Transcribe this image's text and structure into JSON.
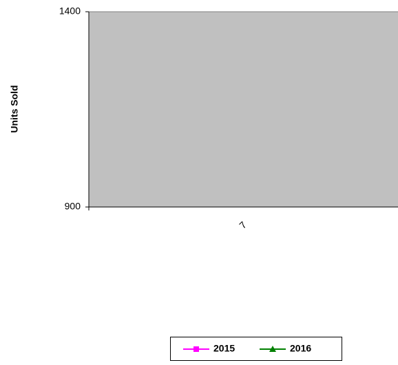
{
  "chart_data": {
    "type": "line",
    "ylabel": "Units Sold",
    "categories": [
      "7"
    ],
    "series": [
      {
        "name": "2015",
        "color": "#ff00ff",
        "marker": "square",
        "values": [
          null
        ]
      },
      {
        "name": "2016",
        "color": "#008000",
        "marker": "triangle",
        "values": [
          null
        ]
      }
    ],
    "ylim": [
      900,
      1400
    ],
    "yticks": [
      900,
      1400
    ],
    "plot_background": "#c0c0c0",
    "legend": "bottom"
  }
}
